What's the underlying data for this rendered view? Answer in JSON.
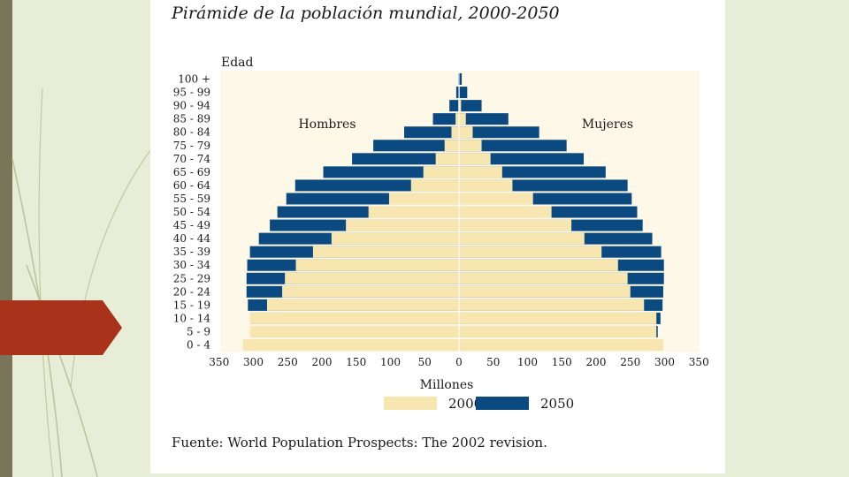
{
  "colors": {
    "background": "#e7edd6",
    "plot_background": "#fdf8e8",
    "series_2000": "#f7e6b0",
    "series_2050": "#0b4a80",
    "accent_tab": "#a8321a",
    "band": "#7a7558"
  },
  "chart_data": {
    "type": "population-pyramid",
    "title": "Pirámide de la población mundial, 2000-2050",
    "source": "Fuente: World Population Prospects: The 2002 revision.",
    "ylabel": "Edad",
    "xlabel": "Millones",
    "left_group_label": "Hombres",
    "right_group_label": "Mujeres",
    "xlim": [
      -350,
      350
    ],
    "xticks": [
      -350,
      -300,
      -250,
      -200,
      -150,
      -100,
      -50,
      0,
      50,
      100,
      150,
      200,
      250,
      300,
      350
    ],
    "xtick_labels": [
      "350",
      "300",
      "250",
      "200",
      "150",
      "100",
      "50",
      "0",
      "50",
      "100",
      "150",
      "200",
      "250",
      "300",
      "350"
    ],
    "categories": [
      "0 - 4",
      "5 - 9",
      "10 - 14",
      "15 - 19",
      "20 - 24",
      "25 - 29",
      "30 - 34",
      "35 - 39",
      "40 - 44",
      "45 - 49",
      "50 - 54",
      "55 - 59",
      "60 - 64",
      "65 - 69",
      "70 - 74",
      "75 - 79",
      "80 - 84",
      "85 - 89",
      "90 - 94",
      "95 - 99",
      "100 +"
    ],
    "series": [
      {
        "name": "2000",
        "men": [
          315,
          305,
          305,
          280,
          258,
          254,
          238,
          213,
          186,
          165,
          132,
          102,
          70,
          52,
          34,
          21,
          11,
          5,
          1,
          0.5,
          0.1
        ],
        "women": [
          298,
          288,
          288,
          270,
          250,
          246,
          232,
          208,
          183,
          164,
          135,
          108,
          78,
          63,
          46,
          33,
          20,
          10,
          3,
          1,
          0.2
        ]
      },
      {
        "name": "2050",
        "men": [
          300,
          302,
          304,
          308,
          310,
          310,
          309,
          305,
          292,
          276,
          265,
          252,
          239,
          198,
          156,
          125,
          80,
          38,
          14,
          4,
          1
        ],
        "women": [
          287,
          290,
          294,
          297,
          298,
          299,
          299,
          295,
          282,
          268,
          260,
          252,
          246,
          214,
          182,
          157,
          117,
          72,
          33,
          12,
          4
        ]
      }
    ]
  }
}
